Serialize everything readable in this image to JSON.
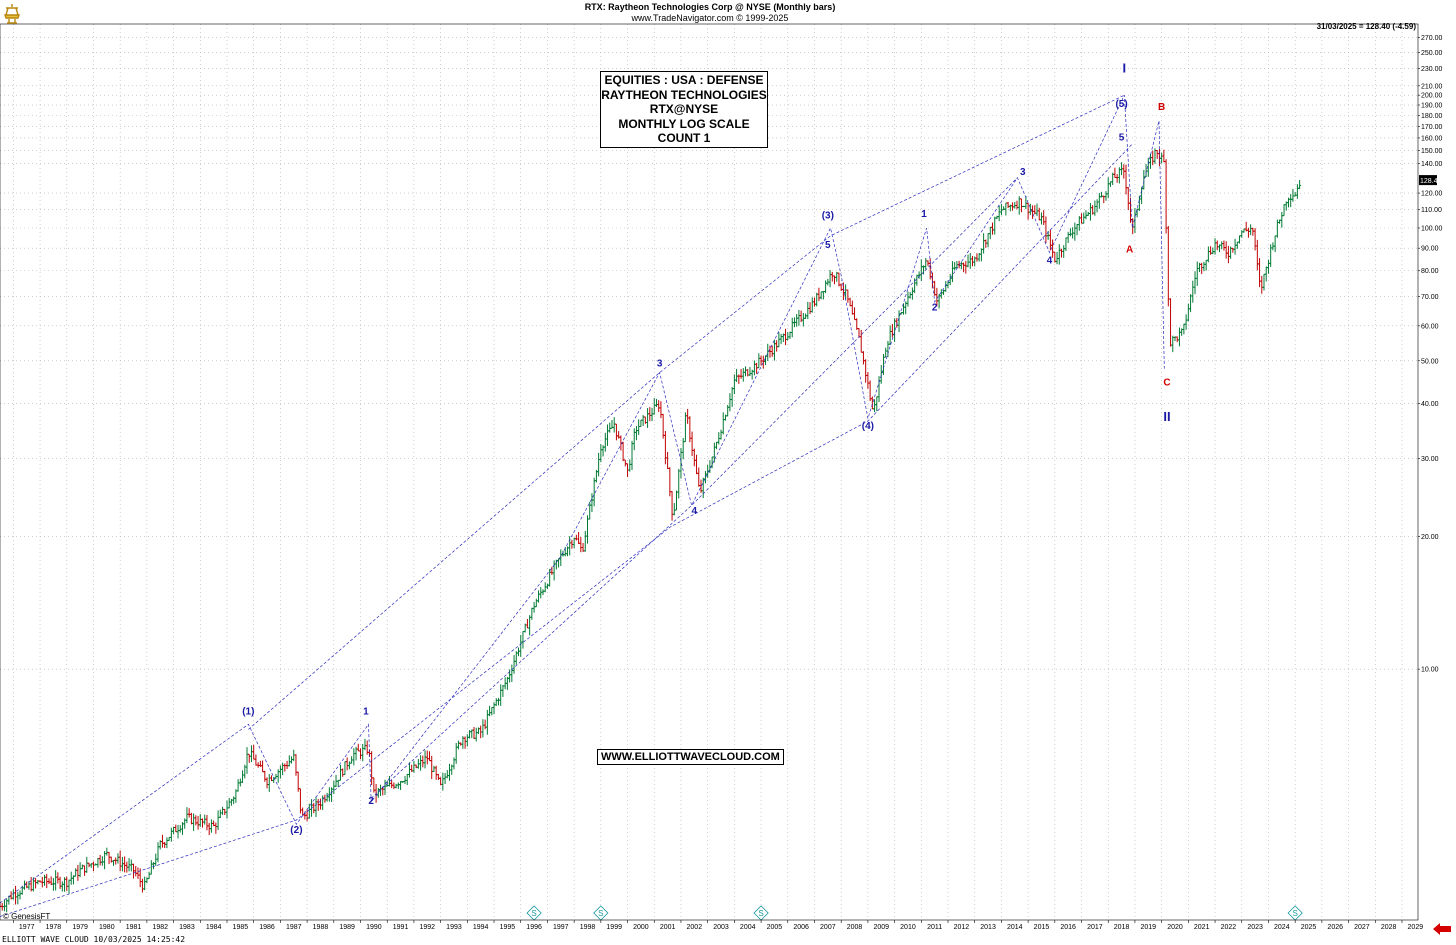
{
  "header": {
    "title": "RTX:  Raytheon Technologies Corp @ NYSE  (Monthly bars)",
    "source": "www.TradeNavigator.com © 1999-2025"
  },
  "last_quote": "31/03/2025 = 128.40 (-4.59)",
  "price_tag": "128.40",
  "title_box": [
    "EQUITIES : USA : DEFENSE",
    "RAYTHEON TECHNOLOGIES",
    "RTX@NYSE",
    "MONTHLY LOG SCALE",
    "COUNT 1"
  ],
  "url_box": "WWW.ELLIOTTWAVECLOUD.COM",
  "copyright": "© GenesisFT",
  "footer": "ELLIOTT WAVE CLOUD   10/03/2025 14:25:42",
  "colors": {
    "bull": "#007a33",
    "bear": "#c00000",
    "wave_blue": "#1a1aa6",
    "wave_red": "#d40000",
    "grid": "#b0b0b0",
    "dashed_line": "#2b2bbf",
    "marker": "#1a9aa0",
    "arrow": "#d40000"
  },
  "chart_data": {
    "type": "ohlc",
    "scale": "log",
    "grid": true,
    "xlim": [
      1976.5,
      2029.6
    ],
    "ylim": [
      2.7,
      290
    ],
    "x_ticks": [
      "1977",
      "1978",
      "1979",
      "1980",
      "1981",
      "1982",
      "1983",
      "1984",
      "1985",
      "1986",
      "1987",
      "1988",
      "1989",
      "1990",
      "1991",
      "1992",
      "1993",
      "1994",
      "1995",
      "1996",
      "1997",
      "1998",
      "1999",
      "2000",
      "2001",
      "2002",
      "2003",
      "2004",
      "2005",
      "2006",
      "2007",
      "2008",
      "2009",
      "2010",
      "2011",
      "2012",
      "2013",
      "2014",
      "2015",
      "2016",
      "2017",
      "2018",
      "2019",
      "2020",
      "2021",
      "2022",
      "2023",
      "2024",
      "2025",
      "2026",
      "2027",
      "2028",
      "2029"
    ],
    "y_ticks": [
      {
        "value": 270,
        "label": "270.00"
      },
      {
        "value": 250,
        "label": "250.00"
      },
      {
        "value": 230,
        "label": "230.00"
      },
      {
        "value": 210,
        "label": "210.00"
      },
      {
        "value": 200,
        "label": "200.00"
      },
      {
        "value": 190,
        "label": "190.00"
      },
      {
        "value": 180,
        "label": "180.00"
      },
      {
        "value": 170,
        "label": "170.00"
      },
      {
        "value": 160,
        "label": "160.00"
      },
      {
        "value": 150,
        "label": "150.00"
      },
      {
        "value": 140,
        "label": "140.00"
      },
      {
        "value": 120,
        "label": "120.00"
      },
      {
        "value": 110,
        "label": "110.00"
      },
      {
        "value": 100,
        "label": "100.00"
      },
      {
        "value": 90,
        "label": "90.00"
      },
      {
        "value": 80,
        "label": "80.00"
      },
      {
        "value": 70,
        "label": "70.00"
      },
      {
        "value": 60,
        "label": "60.00"
      },
      {
        "value": 50,
        "label": "50.00"
      },
      {
        "value": 40,
        "label": "40.00"
      },
      {
        "value": 30,
        "label": "30.00"
      },
      {
        "value": 20,
        "label": "20.00"
      },
      {
        "value": 10,
        "label": "10.00"
      }
    ],
    "price_anchors": [
      [
        1976.5,
        2.9
      ],
      [
        1977.0,
        3.1
      ],
      [
        1978.0,
        3.3
      ],
      [
        1979.0,
        3.3
      ],
      [
        1979.5,
        3.5
      ],
      [
        1980.5,
        3.8
      ],
      [
        1981.5,
        3.5
      ],
      [
        1981.9,
        3.2
      ],
      [
        1982.5,
        4.0
      ],
      [
        1983.5,
        4.6
      ],
      [
        1984.5,
        4.4
      ],
      [
        1985.3,
        5.2
      ],
      [
        1985.8,
        6.5
      ],
      [
        1986.5,
        5.6
      ],
      [
        1987.5,
        6.3
      ],
      [
        1987.8,
        4.6
      ],
      [
        1988.5,
        5.0
      ],
      [
        1989.0,
        5.5
      ],
      [
        1989.7,
        6.4
      ],
      [
        1990.3,
        6.6
      ],
      [
        1990.5,
        5.2
      ],
      [
        1991.5,
        5.6
      ],
      [
        1992.5,
        6.3
      ],
      [
        1993.0,
        5.4
      ],
      [
        1993.8,
        7.0
      ],
      [
        1994.5,
        7.2
      ],
      [
        1995.5,
        9.5
      ],
      [
        1996.5,
        14.0
      ],
      [
        1997.5,
        18.0
      ],
      [
        1998.0,
        20.0
      ],
      [
        1998.3,
        18.5
      ],
      [
        1999.0,
        32.0
      ],
      [
        1999.5,
        36.0
      ],
      [
        2000.0,
        28.0
      ],
      [
        2000.3,
        35.0
      ],
      [
        2001.2,
        40.0
      ],
      [
        2001.7,
        22.0
      ],
      [
        2002.2,
        38.0
      ],
      [
        2002.7,
        25.0
      ],
      [
        2003.3,
        32.0
      ],
      [
        2004.0,
        45.0
      ],
      [
        2005.0,
        50.0
      ],
      [
        2006.0,
        58.0
      ],
      [
        2007.0,
        68.0
      ],
      [
        2007.7,
        80.0
      ],
      [
        2008.2,
        70.0
      ],
      [
        2008.7,
        55.0
      ],
      [
        2009.2,
        38.0
      ],
      [
        2009.7,
        55.0
      ],
      [
        2010.5,
        70.0
      ],
      [
        2011.2,
        85.0
      ],
      [
        2011.6,
        68.0
      ],
      [
        2012.3,
        82.0
      ],
      [
        2013.0,
        85.0
      ],
      [
        2014.0,
        110.0
      ],
      [
        2014.7,
        115.0
      ],
      [
        2015.5,
        105.0
      ],
      [
        2016.0,
        85.0
      ],
      [
        2016.7,
        100.0
      ],
      [
        2017.5,
        112.0
      ],
      [
        2018.2,
        130.0
      ],
      [
        2018.6,
        135.0
      ],
      [
        2018.9,
        98.0
      ],
      [
        2019.3,
        130.0
      ],
      [
        2019.8,
        150.0
      ],
      [
        2020.1,
        140.0
      ],
      [
        2020.3,
        55.0
      ],
      [
        2020.8,
        58.0
      ],
      [
        2021.3,
        80.0
      ],
      [
        2022.0,
        92.0
      ],
      [
        2022.5,
        88.0
      ],
      [
        2023.0,
        98.0
      ],
      [
        2023.4,
        100.0
      ],
      [
        2023.7,
        72.0
      ],
      [
        2024.2,
        95.0
      ],
      [
        2024.7,
        118.0
      ],
      [
        2025.0,
        120.0
      ],
      [
        2025.2,
        128.4
      ]
    ],
    "wave_lines": [
      [
        [
          1976.5,
          2.95
        ],
        [
          1985.8,
          7.5
        ],
        [
          1987.6,
          4.45
        ],
        [
          1990.3,
          7.5
        ],
        [
          1990.4,
          5.0
        ],
        [
          1997.5,
          18.0
        ],
        [
          2001.2,
          47.0
        ],
        [
          2002.4,
          23.5
        ],
        [
          2007.6,
          100.0
        ],
        [
          2008.0,
          78.0
        ],
        [
          2009.0,
          37.0
        ],
        [
          2011.2,
          100.0
        ],
        [
          2011.5,
          68.0
        ],
        [
          2014.6,
          130.0
        ],
        [
          2015.8,
          88.0
        ],
        [
          2018.6,
          200.0
        ],
        [
          2018.9,
          100.0
        ],
        [
          2019.9,
          175.0
        ],
        [
          2020.1,
          48.0
        ]
      ],
      [
        [
          1976.5,
          2.75
        ],
        [
          1987.6,
          4.55
        ],
        [
          2001.6,
          21.0
        ],
        [
          2009.0,
          36.5
        ],
        [
          2018.9,
          155.0
        ]
      ],
      [
        [
          1985.8,
          7.3
        ],
        [
          2001.2,
          47.0
        ],
        [
          2007.6,
          96.0
        ],
        [
          2018.6,
          200.0
        ]
      ],
      [
        [
          1990.4,
          5.1
        ],
        [
          2002.4,
          23.5
        ],
        [
          2014.6,
          130.0
        ]
      ]
    ],
    "wave_labels": [
      {
        "text": "(1)",
        "x": 1985.8,
        "y": 7.9,
        "color": "blue"
      },
      {
        "text": "(2)",
        "x": 1987.6,
        "y": 4.25,
        "color": "blue"
      },
      {
        "text": "1",
        "x": 1990.2,
        "y": 7.9,
        "color": "blue"
      },
      {
        "text": "2",
        "x": 1990.4,
        "y": 4.95,
        "color": "blue"
      },
      {
        "text": "3",
        "x": 2001.2,
        "y": 48.5,
        "color": "blue"
      },
      {
        "text": "4",
        "x": 2002.5,
        "y": 22.5,
        "color": "blue"
      },
      {
        "text": "(3)",
        "x": 2007.5,
        "y": 105.0,
        "color": "blue"
      },
      {
        "text": "5",
        "x": 2007.5,
        "y": 90.0,
        "color": "blue"
      },
      {
        "text": "(4)",
        "x": 2009.0,
        "y": 35.0,
        "color": "blue"
      },
      {
        "text": "1",
        "x": 2011.1,
        "y": 106.0,
        "color": "blue"
      },
      {
        "text": "2",
        "x": 2011.5,
        "y": 65.0,
        "color": "blue"
      },
      {
        "text": "3",
        "x": 2014.8,
        "y": 132.0,
        "color": "blue"
      },
      {
        "text": "4",
        "x": 2015.8,
        "y": 83.0,
        "color": "blue"
      },
      {
        "text": "I",
        "x": 2018.6,
        "y": 225.0,
        "color": "blue"
      },
      {
        "text": "(5)",
        "x": 2018.5,
        "y": 188.0,
        "color": "blue"
      },
      {
        "text": "5",
        "x": 2018.5,
        "y": 158.0,
        "color": "blue"
      },
      {
        "text": "A",
        "x": 2018.8,
        "y": 88.0,
        "color": "red"
      },
      {
        "text": "B",
        "x": 2020.0,
        "y": 185.0,
        "color": "red"
      },
      {
        "text": "C",
        "x": 2020.2,
        "y": 44.0,
        "color": "red"
      },
      {
        "text": "II",
        "x": 2020.2,
        "y": 36.5,
        "color": "blue"
      }
    ],
    "markers": [
      {
        "label": "S",
        "x": 1996.5
      },
      {
        "label": "S",
        "x": 1999.0
      },
      {
        "label": "S",
        "x": 2005.0
      },
      {
        "label": "S",
        "x": 2025.0
      }
    ]
  }
}
